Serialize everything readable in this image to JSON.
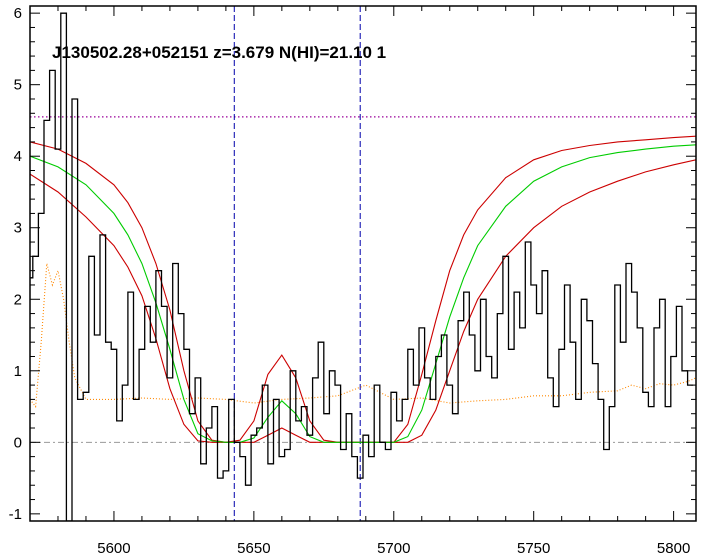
{
  "chart_data": {
    "type": "line",
    "title": "J130502.28+052151 z=3.679 N(HI)=21.10 1",
    "xlabel": "",
    "ylabel": "",
    "xlim": [
      5570,
      5808
    ],
    "ylim": [
      -1.1,
      6.1
    ],
    "x_ticks": [
      5600,
      5650,
      5700,
      5750,
      5800
    ],
    "x_tick_labels": [
      "5600",
      "5650",
      "5700",
      "5750",
      "5800"
    ],
    "y_ticks": [
      -1,
      0,
      1,
      2,
      3,
      4,
      5,
      6
    ],
    "y_tick_labels": [
      "-1",
      "0",
      "1",
      "2",
      "3",
      "4",
      "5",
      "6"
    ],
    "grid": false,
    "colors": {
      "flux": "#000000",
      "model_best": "#00cc00",
      "model_bounds": "#cc0000",
      "error": "#ff8800",
      "continuum": "#990099",
      "zero_line": "#999999",
      "velocity_limits": "#0000aa"
    },
    "continuum_level": 4.55,
    "zero_level": 0,
    "vertical_markers_x": [
      5643,
      5688
    ],
    "series": [
      {
        "role": "flux",
        "style": "step",
        "x": [
          5570,
          5572,
          5574,
          5576,
          5578,
          5580,
          5582,
          5584,
          5586,
          5588,
          5590,
          5592,
          5594,
          5596,
          5598,
          5600,
          5602,
          5604,
          5606,
          5608,
          5610,
          5612,
          5614,
          5616,
          5618,
          5620,
          5622,
          5624,
          5626,
          5628,
          5630,
          5632,
          5634,
          5636,
          5638,
          5640,
          5642,
          5644,
          5646,
          5648,
          5650,
          5652,
          5654,
          5656,
          5658,
          5660,
          5662,
          5664,
          5666,
          5668,
          5670,
          5672,
          5674,
          5676,
          5678,
          5680,
          5682,
          5684,
          5686,
          5688,
          5690,
          5692,
          5694,
          5696,
          5698,
          5700,
          5702,
          5704,
          5706,
          5708,
          5710,
          5712,
          5714,
          5716,
          5718,
          5720,
          5722,
          5724,
          5726,
          5728,
          5730,
          5732,
          5734,
          5736,
          5738,
          5740,
          5742,
          5744,
          5746,
          5748,
          5750,
          5752,
          5754,
          5756,
          5758,
          5760,
          5762,
          5764,
          5766,
          5768,
          5770,
          5772,
          5774,
          5776,
          5778,
          5780,
          5782,
          5784,
          5786,
          5788,
          5790,
          5792,
          5794,
          5796,
          5798,
          5800,
          5802,
          5804,
          5806
        ],
        "y": [
          2.3,
          2.6,
          3.2,
          4.5,
          5.2,
          4.1,
          6.0,
          -1.1,
          4.8,
          0.6,
          0.7,
          2.6,
          1.5,
          2.9,
          1.4,
          1.3,
          0.3,
          0.8,
          2.1,
          0.6,
          1.3,
          1.9,
          1.4,
          2.4,
          1.9,
          0.9,
          2.5,
          1.8,
          1.3,
          0.4,
          0.9,
          -0.3,
          0.2,
          0.5,
          -0.5,
          -0.4,
          0.6,
          0.0,
          -0.2,
          -0.6,
          0.1,
          0.2,
          0.8,
          -0.3,
          0.6,
          -0.2,
          -0.1,
          1.0,
          0.3,
          0.5,
          0.1,
          0.9,
          1.4,
          0.4,
          1.0,
          0.8,
          -0.1,
          0.4,
          -0.2,
          -0.5,
          0.1,
          -0.2,
          0.8,
          0.0,
          -0.1,
          0.7,
          0.3,
          0.6,
          1.3,
          0.8,
          1.6,
          0.9,
          0.6,
          1.2,
          1.5,
          0.8,
          0.4,
          1.7,
          2.1,
          1.5,
          1.0,
          2.0,
          1.2,
          0.9,
          1.8,
          2.6,
          1.3,
          2.1,
          1.6,
          2.8,
          2.2,
          1.8,
          2.4,
          0.9,
          0.5,
          1.3,
          2.2,
          1.4,
          0.6,
          2.0,
          1.7,
          1.1,
          0.6,
          -0.1,
          0.5,
          2.2,
          1.4,
          2.5,
          2.1,
          1.6,
          0.7,
          0.5,
          1.6,
          2.0,
          0.5,
          1.2,
          1.9,
          1.0,
          0.8
        ]
      },
      {
        "role": "error",
        "style": "dotted",
        "x": [
          5570,
          5572,
          5574,
          5576,
          5578,
          5580,
          5582,
          5584,
          5586,
          5590,
          5600,
          5610,
          5620,
          5630,
          5640,
          5650,
          5660,
          5670,
          5680,
          5690,
          5700,
          5710,
          5720,
          5730,
          5740,
          5750,
          5760,
          5770,
          5780,
          5785,
          5790,
          5795,
          5800,
          5805,
          5808
        ],
        "y": [
          0.6,
          0.5,
          1.4,
          2.5,
          2.2,
          2.4,
          2.0,
          1.4,
          0.9,
          0.6,
          0.6,
          0.62,
          0.6,
          0.62,
          0.6,
          0.55,
          0.6,
          0.62,
          0.65,
          0.8,
          0.6,
          0.62,
          0.55,
          0.58,
          0.6,
          0.65,
          0.65,
          0.7,
          0.72,
          0.8,
          0.75,
          0.82,
          0.8,
          0.85,
          0.9
        ]
      },
      {
        "name": "",
        "role": "model_best",
        "style": "solid",
        "x": [
          5570,
          5580,
          5590,
          5600,
          5605,
          5610,
          5615,
          5620,
          5625,
          5630,
          5635,
          5640,
          5645,
          5650,
          5655,
          5660,
          5665,
          5670,
          5675,
          5680,
          5685,
          5690,
          5695,
          5700,
          5705,
          5710,
          5715,
          5720,
          5725,
          5730,
          5740,
          5750,
          5760,
          5770,
          5780,
          5790,
          5800,
          5808
        ],
        "y": [
          4.0,
          3.85,
          3.6,
          3.2,
          2.9,
          2.5,
          1.95,
          1.3,
          0.6,
          0.12,
          0.02,
          0.0,
          0.0,
          0.06,
          0.35,
          0.58,
          0.4,
          0.08,
          0.0,
          0.0,
          0.0,
          0.0,
          0.0,
          0.0,
          0.08,
          0.45,
          1.1,
          1.75,
          2.3,
          2.75,
          3.3,
          3.65,
          3.85,
          3.98,
          4.05,
          4.1,
          4.14,
          4.16
        ]
      },
      {
        "name": "",
        "role": "model_upper",
        "style": "solid",
        "x": [
          5570,
          5580,
          5590,
          5600,
          5605,
          5610,
          5615,
          5620,
          5625,
          5630,
          5635,
          5640,
          5645,
          5650,
          5655,
          5660,
          5665,
          5670,
          5675,
          5680,
          5685,
          5690,
          5695,
          5700,
          5705,
          5710,
          5715,
          5720,
          5725,
          5730,
          5740,
          5750,
          5760,
          5770,
          5780,
          5790,
          5800,
          5808
        ],
        "y": [
          4.2,
          4.1,
          3.9,
          3.6,
          3.35,
          3.0,
          2.5,
          1.85,
          1.0,
          0.3,
          0.03,
          0.0,
          0.03,
          0.3,
          0.95,
          1.22,
          0.9,
          0.3,
          0.03,
          0.0,
          0.0,
          0.0,
          0.0,
          0.0,
          0.25,
          0.95,
          1.7,
          2.4,
          2.9,
          3.25,
          3.7,
          3.95,
          4.08,
          4.15,
          4.2,
          4.23,
          4.26,
          4.28
        ]
      },
      {
        "name": "",
        "role": "model_lower",
        "style": "solid",
        "x": [
          5570,
          5580,
          5590,
          5600,
          5605,
          5610,
          5615,
          5620,
          5625,
          5630,
          5635,
          5640,
          5645,
          5650,
          5655,
          5660,
          5665,
          5670,
          5675,
          5680,
          5685,
          5690,
          5695,
          5700,
          5705,
          5710,
          5715,
          5720,
          5725,
          5730,
          5740,
          5750,
          5760,
          5770,
          5780,
          5790,
          5800,
          5808
        ],
        "y": [
          3.75,
          3.5,
          3.15,
          2.75,
          2.45,
          2.05,
          1.45,
          0.75,
          0.25,
          0.02,
          0.0,
          0.0,
          0.0,
          0.0,
          0.1,
          0.2,
          0.1,
          0.0,
          0.0,
          0.0,
          0.0,
          0.0,
          0.0,
          0.0,
          0.0,
          0.1,
          0.45,
          1.0,
          1.55,
          2.0,
          2.6,
          3.0,
          3.3,
          3.5,
          3.65,
          3.78,
          3.88,
          3.95
        ]
      }
    ]
  }
}
